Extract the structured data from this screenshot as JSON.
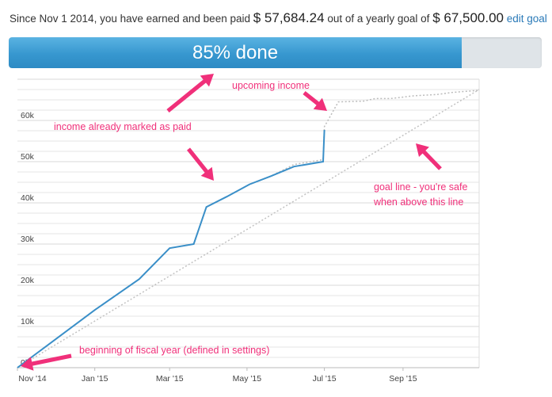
{
  "summary": {
    "prefix": "Since Nov 1 2014, you have earned and been paid",
    "earned": "$ 57,684.24",
    "middle": "out of a yearly goal of",
    "goal": "$ 67,500.00",
    "edit_goal_label": "edit goal"
  },
  "progress": {
    "label": "85% done",
    "fraction": 0.85,
    "color": "#3797cf"
  },
  "annotations": {
    "upcoming": "upcoming income",
    "paid": "income already marked as paid",
    "goal_line_1": "goal line - you're safe",
    "goal_line_2": "when above this line",
    "fiscal": "beginning of fiscal year (defined in settings)",
    "color": "#f0307a"
  },
  "chart_data": {
    "type": "line",
    "title": "",
    "xlabel": "",
    "ylabel": "",
    "x_ticks": [
      "Nov '14",
      "Jan '15",
      "Mar '15",
      "May '15",
      "Jul '15",
      "Sep '15"
    ],
    "y_ticks": [
      "0k",
      "10k",
      "20k",
      "30k",
      "40k",
      "50k",
      "60k"
    ],
    "ylim": [
      0,
      70000
    ],
    "grid": true,
    "series": [
      {
        "style": "solid",
        "color": "#3a8fc8",
        "points": [
          [
            "2014-11-01",
            0
          ],
          [
            "2014-11-25",
            5500
          ],
          [
            "2015-01-01",
            14000
          ],
          [
            "2015-02-05",
            21500
          ],
          [
            "2015-03-01",
            29000
          ],
          [
            "2015-03-20",
            30000
          ],
          [
            "2015-03-30",
            39000
          ],
          [
            "2015-04-15",
            41500
          ],
          [
            "2015-05-03",
            44500
          ],
          [
            "2015-05-20",
            46500
          ],
          [
            "2015-06-07",
            48800
          ],
          [
            "2015-06-30",
            50000
          ],
          [
            "2015-07-01",
            57684
          ]
        ]
      },
      {
        "style": "dotted",
        "color": "#bbbbbb",
        "points": [
          [
            "2014-11-01",
            0
          ],
          [
            "2014-11-25",
            5500
          ],
          [
            "2015-01-01",
            14000
          ],
          [
            "2015-02-05",
            21500
          ],
          [
            "2015-03-01",
            29000
          ],
          [
            "2015-03-20",
            30000
          ],
          [
            "2015-03-30",
            39000
          ],
          [
            "2015-04-15",
            41500
          ],
          [
            "2015-05-03",
            44500
          ],
          [
            "2015-05-20",
            46500
          ],
          [
            "2015-06-07",
            49300
          ],
          [
            "2015-06-30",
            50500
          ],
          [
            "2015-07-01",
            58500
          ],
          [
            "2015-07-12",
            64500
          ],
          [
            "2015-08-01",
            64700
          ],
          [
            "2015-08-10",
            65300
          ],
          [
            "2015-08-22",
            65300
          ],
          [
            "2015-09-10",
            66000
          ],
          [
            "2015-09-28",
            66300
          ],
          [
            "2015-10-10",
            66800
          ],
          [
            "2015-10-31",
            67300
          ]
        ]
      },
      {
        "style": "dotted",
        "color": "#c2c2c2",
        "points": [
          [
            "2014-11-01",
            0
          ],
          [
            "2015-10-31",
            67500
          ]
        ]
      }
    ]
  }
}
